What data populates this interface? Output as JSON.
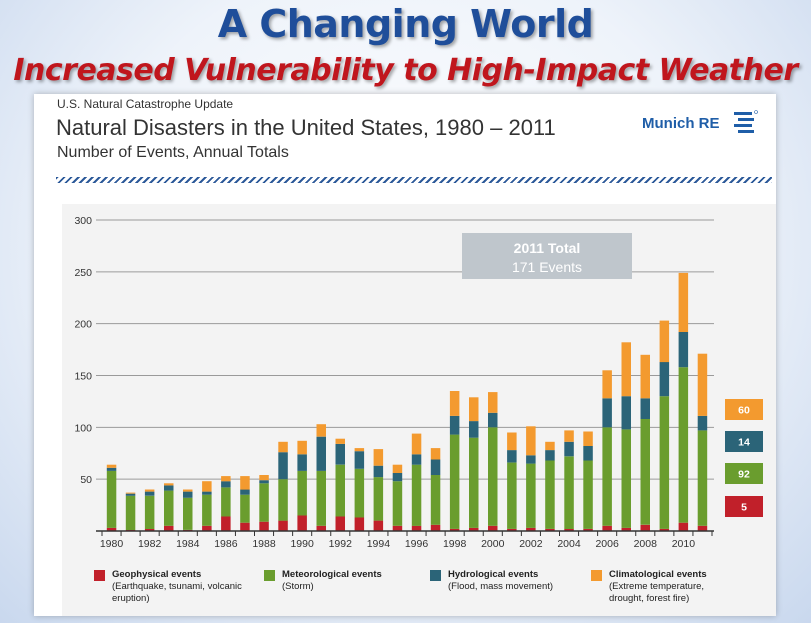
{
  "headline": "A Changing World",
  "subheadline": "Increased Vulnerability to High-Impact Weather",
  "header": {
    "update_label": "U.S. Natural Catastrophe Update",
    "title": "Natural Disasters in the United States, 1980 – 2011",
    "subtitle": "Number of Events, Annual Totals",
    "logo_text": "Munich RE"
  },
  "colors": {
    "geophysical": "#c1202a",
    "meteorological": "#6a9d2e",
    "hydrological": "#2b6478",
    "climatological": "#f39a2f",
    "callout_bg": "#bfc6cc"
  },
  "chart_data": {
    "type": "bar",
    "stacked": true,
    "title": "Natural Disasters in the United States, 1980 – 2011",
    "subtitle": "Number of Events, Annual Totals",
    "xlabel": "",
    "ylabel": "",
    "ylim": [
      0,
      300
    ],
    "yticks": [
      50,
      100,
      150,
      200,
      250,
      300
    ],
    "grid": true,
    "legend_position": "bottom",
    "categories": [
      1980,
      1981,
      1982,
      1983,
      1984,
      1985,
      1986,
      1987,
      1988,
      1989,
      1990,
      1991,
      1992,
      1993,
      1994,
      1995,
      1996,
      1997,
      1998,
      1999,
      2000,
      2001,
      2002,
      2003,
      2004,
      2005,
      2006,
      2007,
      2008,
      2009,
      2010,
      2011
    ],
    "x_tick_labels": [
      "1980",
      "1982",
      "1984",
      "1986",
      "1988",
      "1990",
      "1992",
      "1994",
      "1996",
      "1998",
      "2000",
      "2002",
      "2004",
      "2006",
      "2008",
      "2010"
    ],
    "series": [
      {
        "name": "Geophysical events",
        "description": "(Earthquake, tsunami, volcanic eruption)",
        "color": "#c1202a",
        "values": [
          3,
          1,
          2,
          5,
          1,
          5,
          14,
          8,
          9,
          10,
          15,
          5,
          14,
          13,
          10,
          5,
          5,
          6,
          2,
          3,
          5,
          2,
          3,
          2,
          2,
          2,
          5,
          3,
          6,
          2,
          8,
          5
        ]
      },
      {
        "name": "Meteorological events",
        "description": "(Storm)",
        "color": "#6a9d2e",
        "values": [
          55,
          33,
          32,
          34,
          31,
          30,
          28,
          27,
          37,
          40,
          43,
          53,
          50,
          47,
          42,
          43,
          59,
          48,
          91,
          87,
          95,
          64,
          62,
          66,
          70,
          66,
          95,
          95,
          102,
          128,
          150,
          92
        ]
      },
      {
        "name": "Hydrological events",
        "description": "(Flood, mass movement)",
        "color": "#2b6478",
        "values": [
          3,
          2,
          4,
          5,
          6,
          3,
          6,
          5,
          3,
          26,
          16,
          33,
          20,
          17,
          11,
          8,
          10,
          15,
          18,
          16,
          14,
          12,
          8,
          10,
          14,
          14,
          28,
          32,
          20,
          33,
          34,
          14
        ]
      },
      {
        "name": "Climatological events",
        "description": "(Extreme temperature, drought, forest fire)",
        "color": "#f39a2f",
        "values": [
          3,
          1,
          2,
          2,
          2,
          10,
          5,
          13,
          5,
          10,
          13,
          12,
          5,
          3,
          16,
          8,
          20,
          11,
          24,
          23,
          20,
          17,
          28,
          8,
          11,
          14,
          27,
          52,
          42,
          40,
          57,
          60
        ]
      }
    ],
    "callout": {
      "title": "2011 Total",
      "text": "171 Events"
    },
    "right_labels": [
      {
        "series": "Climatological events",
        "value": "60",
        "color": "#f39a2f"
      },
      {
        "series": "Hydrological events",
        "value": "14",
        "color": "#2b6478"
      },
      {
        "series": "Meteorological events",
        "value": "92",
        "color": "#6a9d2e"
      },
      {
        "series": "Geophysical events",
        "value": "5",
        "color": "#c1202a"
      }
    ]
  }
}
